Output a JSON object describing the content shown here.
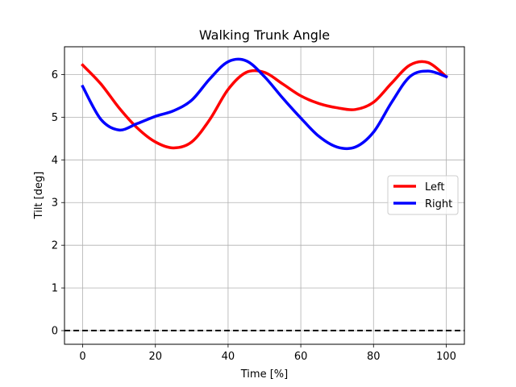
{
  "chart_data": {
    "type": "line",
    "title": "Walking Trunk Angle",
    "xlabel": "Time [%]",
    "ylabel": "Tilt [deg]",
    "xlim": [
      -5,
      105
    ],
    "ylim": [
      -0.32,
      6.65
    ],
    "xticks": [
      0,
      20,
      40,
      60,
      80,
      100
    ],
    "yticks": [
      0,
      1,
      2,
      3,
      4,
      5,
      6
    ],
    "grid": true,
    "legend_position": "center-right",
    "reference_line": {
      "y": 0,
      "style": "dashed",
      "color": "#000000"
    },
    "series": [
      {
        "name": "Left",
        "color": "#ff0000",
        "x": [
          0,
          5,
          10,
          15,
          20,
          25,
          30,
          35,
          40,
          45,
          50,
          55,
          60,
          65,
          70,
          75,
          80,
          85,
          90,
          95,
          100
        ],
        "values": [
          6.22,
          5.78,
          5.22,
          4.75,
          4.42,
          4.28,
          4.42,
          4.95,
          5.65,
          6.05,
          6.05,
          5.78,
          5.5,
          5.32,
          5.22,
          5.18,
          5.35,
          5.8,
          6.22,
          6.28,
          5.95
        ]
      },
      {
        "name": "Right",
        "color": "#0000ff",
        "x": [
          0,
          5,
          10,
          15,
          20,
          25,
          30,
          35,
          40,
          45,
          50,
          55,
          60,
          65,
          70,
          75,
          80,
          85,
          90,
          95,
          100
        ],
        "values": [
          5.72,
          4.95,
          4.7,
          4.85,
          5.02,
          5.15,
          5.4,
          5.9,
          6.3,
          6.32,
          5.95,
          5.45,
          4.98,
          4.55,
          4.3,
          4.3,
          4.65,
          5.35,
          5.95,
          6.08,
          5.95
        ]
      }
    ]
  }
}
